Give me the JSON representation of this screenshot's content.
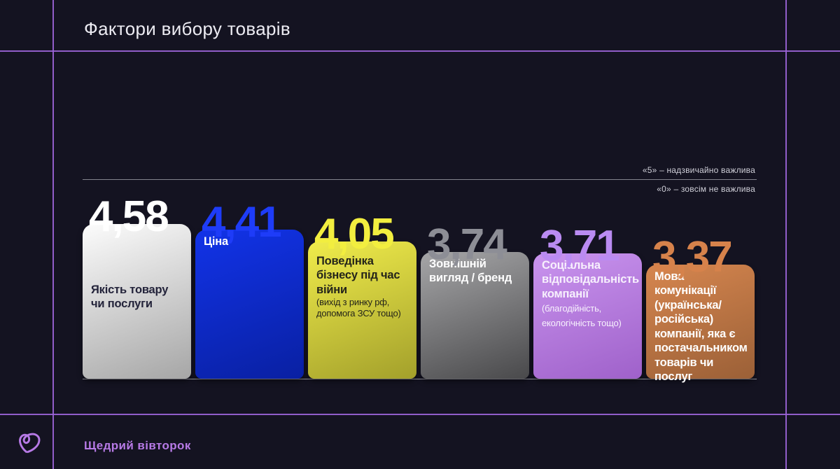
{
  "title": "Фактори вибору товарів",
  "footer": {
    "brand": "Щедрий вівторок",
    "logo_icon": "heart-scribble",
    "accent_color": "#b77ae6"
  },
  "colors": {
    "background": "#141321",
    "grid_line": "#9c64d8",
    "scale_line": "#87878f",
    "scale_text": "#cfcfd8"
  },
  "chart_data": {
    "type": "bar",
    "title": "Фактори вибору товарів",
    "ylim": [
      0,
      5
    ],
    "legend_position": "none",
    "grid": "off",
    "scale": {
      "max_label": "«5» – надзвичайно важлива",
      "min_label": "«0»  – зовсім не важлива"
    },
    "bars": [
      {
        "value": 4.58,
        "value_label": "4,58",
        "label": "Якість товару чи послуги",
        "note": "",
        "note_inline": false,
        "color_top": "#fcfcfc",
        "color_bottom": "#a6a6a6",
        "value_color": "#ffffff",
        "text_color": "#23233a"
      },
      {
        "value": 4.41,
        "value_label": "4,41",
        "label": "Ціна",
        "note": "",
        "note_inline": false,
        "color_top": "#1233e8",
        "color_bottom": "#0920a2",
        "value_color": "#1e3cf8",
        "text_color": "#ffffff"
      },
      {
        "value": 4.05,
        "value_label": "4,05",
        "label": "Поведінка бізнесу під час війни",
        "note": "(вихід з ринку рф, допомога ЗСУ тощо)",
        "note_inline": false,
        "color_top": "#f0ec4b",
        "color_bottom": "#a3a02b",
        "value_color": "#f2ee3f",
        "text_color": "#24241a"
      },
      {
        "value": 3.74,
        "value_label": "3,74",
        "label": "Зовнішній вигляд / бренд",
        "note": "",
        "note_inline": false,
        "color_top": "#a6a6a8",
        "color_bottom": "#49494b",
        "value_color": "#8d8e96",
        "text_color": "#ffffff"
      },
      {
        "value": 3.71,
        "value_label": "3,71",
        "label": "Соціальна відповідальність компанії",
        "note": "(благодійність, екологічність тощо)",
        "note_inline": true,
        "color_top": "#c994ee",
        "color_bottom": "#9f61ca",
        "value_color": "#ba8bf2",
        "text_color": "#f7f0fd"
      },
      {
        "value": 3.37,
        "value_label": "3,37",
        "label": "Мова комунікації (українська/ російська) компанії, яка є постачальником товарів чи послуг",
        "note": "",
        "note_inline": false,
        "color_top": "#d6864f",
        "color_bottom": "#9b6037",
        "value_color": "#d6824b",
        "text_color": "#ffffff"
      }
    ]
  }
}
